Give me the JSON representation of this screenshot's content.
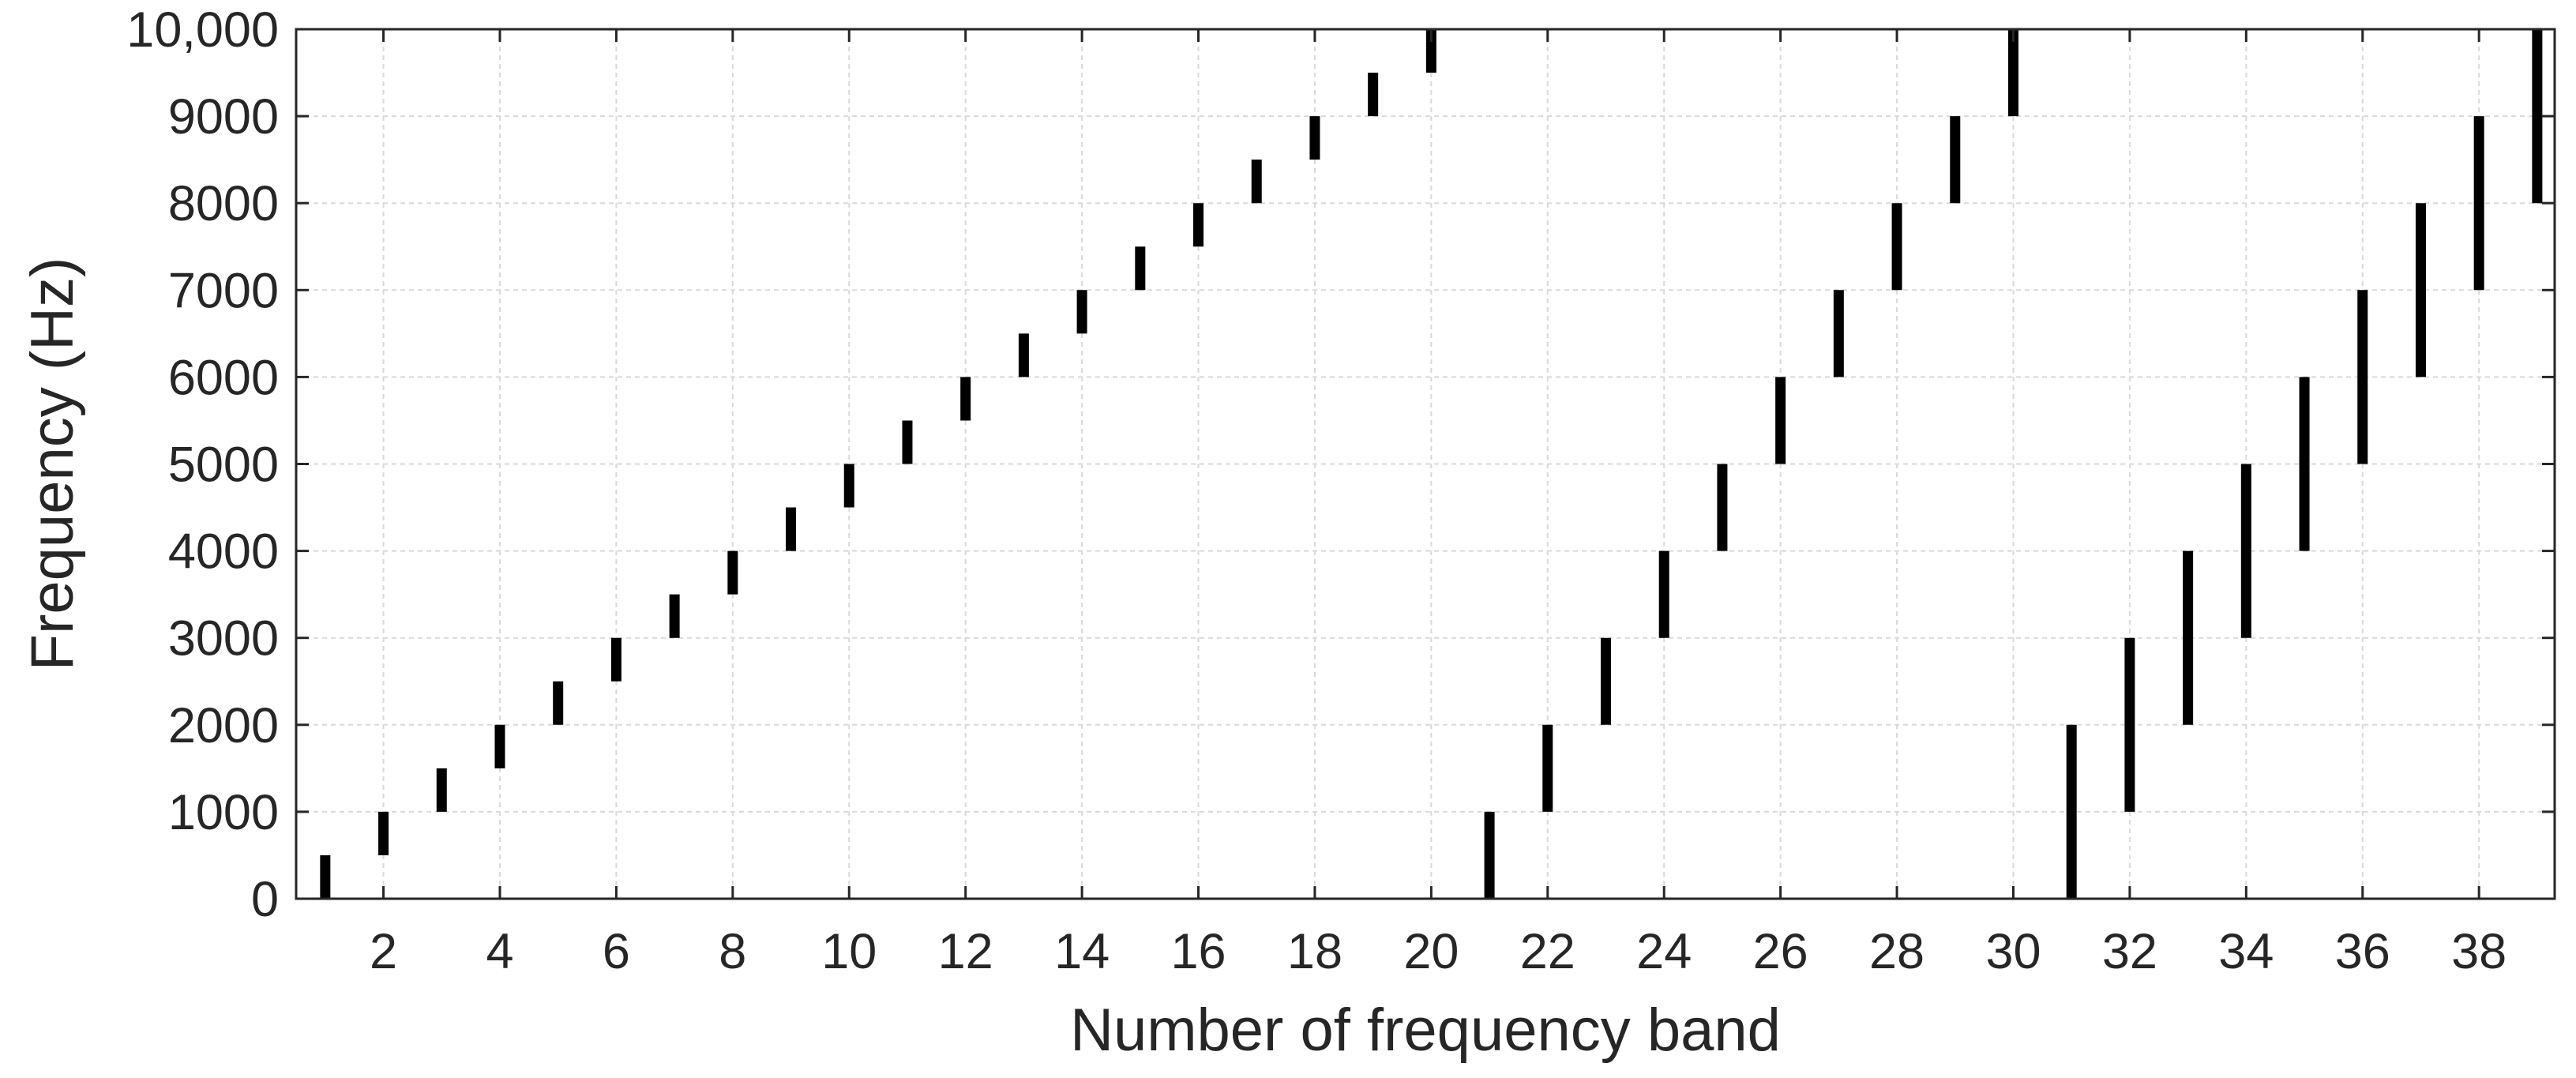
{
  "chart_data": {
    "type": "range-bar",
    "xlabel": "Number of frequency band",
    "ylabel": "Frequency (Hz)",
    "xlim": [
      0.5,
      39.3
    ],
    "ylim": [
      0,
      10000
    ],
    "grid": true,
    "x_ticks": [
      2,
      4,
      6,
      8,
      10,
      12,
      14,
      16,
      18,
      20,
      22,
      24,
      26,
      28,
      30,
      32,
      34,
      36,
      38
    ],
    "x_tick_labels": [
      "2",
      "4",
      "6",
      "8",
      "10",
      "12",
      "14",
      "16",
      "18",
      "20",
      "22",
      "24",
      "26",
      "28",
      "30",
      "32",
      "34",
      "36",
      "38"
    ],
    "y_ticks": [
      0,
      1000,
      2000,
      3000,
      4000,
      5000,
      6000,
      7000,
      8000,
      9000,
      10000
    ],
    "y_tick_labels": [
      "0",
      "1000",
      "2000",
      "3000",
      "4000",
      "5000",
      "6000",
      "7000",
      "8000",
      "9000",
      "10,000"
    ],
    "bands": [
      {
        "band": 1,
        "low": 0,
        "high": 500
      },
      {
        "band": 2,
        "low": 500,
        "high": 1000
      },
      {
        "band": 3,
        "low": 1000,
        "high": 1500
      },
      {
        "band": 4,
        "low": 1500,
        "high": 2000
      },
      {
        "band": 5,
        "low": 2000,
        "high": 2500
      },
      {
        "band": 6,
        "low": 2500,
        "high": 3000
      },
      {
        "band": 7,
        "low": 3000,
        "high": 3500
      },
      {
        "band": 8,
        "low": 3500,
        "high": 4000
      },
      {
        "band": 9,
        "low": 4000,
        "high": 4500
      },
      {
        "band": 10,
        "low": 4500,
        "high": 5000
      },
      {
        "band": 11,
        "low": 5000,
        "high": 5500
      },
      {
        "band": 12,
        "low": 5500,
        "high": 6000
      },
      {
        "band": 13,
        "low": 6000,
        "high": 6500
      },
      {
        "band": 14,
        "low": 6500,
        "high": 7000
      },
      {
        "band": 15,
        "low": 7000,
        "high": 7500
      },
      {
        "band": 16,
        "low": 7500,
        "high": 8000
      },
      {
        "band": 17,
        "low": 8000,
        "high": 8500
      },
      {
        "band": 18,
        "low": 8500,
        "high": 9000
      },
      {
        "band": 19,
        "low": 9000,
        "high": 9500
      },
      {
        "band": 20,
        "low": 9500,
        "high": 10000
      },
      {
        "band": 21,
        "low": 0,
        "high": 1000
      },
      {
        "band": 22,
        "low": 1000,
        "high": 2000
      },
      {
        "band": 23,
        "low": 2000,
        "high": 3000
      },
      {
        "band": 24,
        "low": 3000,
        "high": 4000
      },
      {
        "band": 25,
        "low": 4000,
        "high": 5000
      },
      {
        "band": 26,
        "low": 5000,
        "high": 6000
      },
      {
        "band": 27,
        "low": 6000,
        "high": 7000
      },
      {
        "band": 28,
        "low": 7000,
        "high": 8000
      },
      {
        "band": 29,
        "low": 8000,
        "high": 9000
      },
      {
        "band": 30,
        "low": 9000,
        "high": 10000
      },
      {
        "band": 31,
        "low": 0,
        "high": 2000
      },
      {
        "band": 32,
        "low": 1000,
        "high": 3000
      },
      {
        "band": 33,
        "low": 2000,
        "high": 4000
      },
      {
        "band": 34,
        "low": 3000,
        "high": 5000
      },
      {
        "band": 35,
        "low": 4000,
        "high": 6000
      },
      {
        "band": 36,
        "low": 5000,
        "high": 7000
      },
      {
        "band": 37,
        "low": 6000,
        "high": 8000
      },
      {
        "band": 38,
        "low": 7000,
        "high": 9000
      },
      {
        "band": 39,
        "low": 8000,
        "high": 10000
      }
    ],
    "colors": {
      "bar": "#000000",
      "grid": "#d9d9d9",
      "axis": "#262626"
    }
  }
}
